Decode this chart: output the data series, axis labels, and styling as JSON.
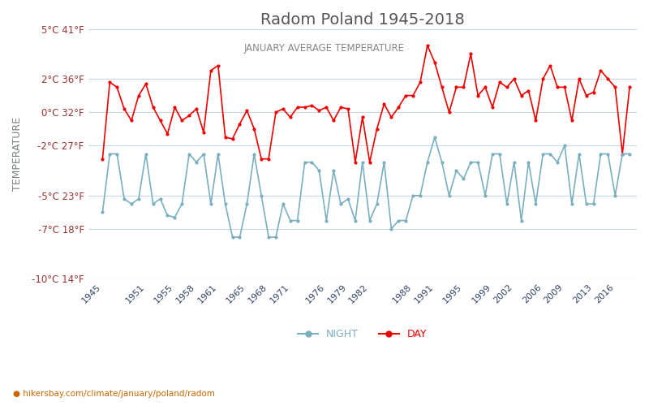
{
  "title": "Radom Poland 1945-2018",
  "subtitle": "JANUARY AVERAGE TEMPERATURE",
  "ylabel": "TEMPERATURE",
  "footer": "hikersbay.com/climate/january/poland/radom",
  "xlim_min": 1943,
  "xlim_max": 2019,
  "ylim_min": -10,
  "ylim_max": 5,
  "yticks_c": [
    -10,
    -7,
    -5,
    -2,
    0,
    2,
    5
  ],
  "yticks_f": [
    14,
    18,
    23,
    27,
    32,
    36,
    41
  ],
  "xtick_years": [
    1945,
    1951,
    1955,
    1958,
    1961,
    1965,
    1968,
    1971,
    1976,
    1979,
    1982,
    1988,
    1991,
    1995,
    1999,
    2002,
    2006,
    2009,
    2013,
    2016
  ],
  "day_color": "#ee0000",
  "night_color": "#7aafc0",
  "grid_color": "#c8d8e8",
  "bg_color": "#ffffff",
  "title_color": "#555555",
  "subtitle_color": "#888888",
  "ylabel_color": "#7a8080",
  "ytick_color": "#993333",
  "xtick_color": "#334466",
  "footer_color": "#cc6600",
  "years": [
    1945,
    1946,
    1947,
    1948,
    1949,
    1950,
    1951,
    1952,
    1953,
    1954,
    1955,
    1956,
    1957,
    1958,
    1959,
    1960,
    1961,
    1962,
    1963,
    1964,
    1965,
    1966,
    1967,
    1968,
    1969,
    1970,
    1971,
    1972,
    1973,
    1974,
    1975,
    1976,
    1977,
    1978,
    1979,
    1980,
    1981,
    1982,
    1983,
    1984,
    1985,
    1986,
    1987,
    1988,
    1989,
    1990,
    1991,
    1992,
    1993,
    1994,
    1995,
    1996,
    1997,
    1998,
    1999,
    2000,
    2001,
    2002,
    2003,
    2004,
    2005,
    2006,
    2007,
    2008,
    2009,
    2010,
    2011,
    2012,
    2013,
    2014,
    2015,
    2016,
    2017,
    2018
  ],
  "day_temps": [
    -2.8,
    1.8,
    1.5,
    0.2,
    -0.5,
    1.0,
    1.7,
    0.3,
    -0.5,
    -1.3,
    0.3,
    -0.5,
    -0.2,
    0.2,
    -1.2,
    2.5,
    2.8,
    -1.5,
    -1.6,
    -0.7,
    0.1,
    -1.0,
    -2.8,
    -2.8,
    0.0,
    0.2,
    -0.3,
    0.3,
    0.3,
    0.4,
    0.1,
    0.3,
    -0.5,
    0.3,
    0.2,
    -3.0,
    -0.3,
    -3.0,
    -1.0,
    0.5,
    -0.3,
    0.3,
    1.0,
    1.0,
    1.8,
    4.0,
    3.0,
    1.5,
    0.0,
    1.5,
    1.5,
    3.5,
    1.0,
    1.5,
    0.3,
    1.8,
    1.5,
    2.0,
    1.0,
    1.3,
    -0.5,
    2.0,
    2.8,
    1.5,
    1.5,
    -0.5,
    2.0,
    1.0,
    1.2,
    2.5,
    2.0,
    1.5,
    -2.5,
    1.5
  ],
  "night_temps": [
    -6.0,
    -2.5,
    -2.5,
    -5.2,
    -5.5,
    -5.2,
    -2.5,
    -5.5,
    -5.2,
    -6.2,
    -6.3,
    -5.5,
    -2.5,
    -3.0,
    -2.5,
    -5.5,
    -2.5,
    -5.5,
    -7.5,
    -7.5,
    -5.5,
    -2.5,
    -5.0,
    -7.5,
    -7.5,
    -5.5,
    -6.5,
    -6.5,
    -3.0,
    -3.0,
    -3.5,
    -6.5,
    -3.5,
    -5.5,
    -5.2,
    -6.5,
    -3.0,
    -6.5,
    -5.5,
    -3.0,
    -7.0,
    -6.5,
    -6.5,
    -5.0,
    -5.0,
    -3.0,
    -1.5,
    -3.0,
    -5.0,
    -3.5,
    -4.0,
    -3.0,
    -3.0,
    -5.0,
    -2.5,
    -2.5,
    -5.5,
    -3.0,
    -6.5,
    -3.0,
    -5.5,
    -2.5,
    -2.5,
    -3.0,
    -2.0,
    -5.5,
    -2.5,
    -5.5,
    -5.5,
    -2.5,
    -2.5,
    -5.0,
    -2.5,
    -2.5
  ]
}
